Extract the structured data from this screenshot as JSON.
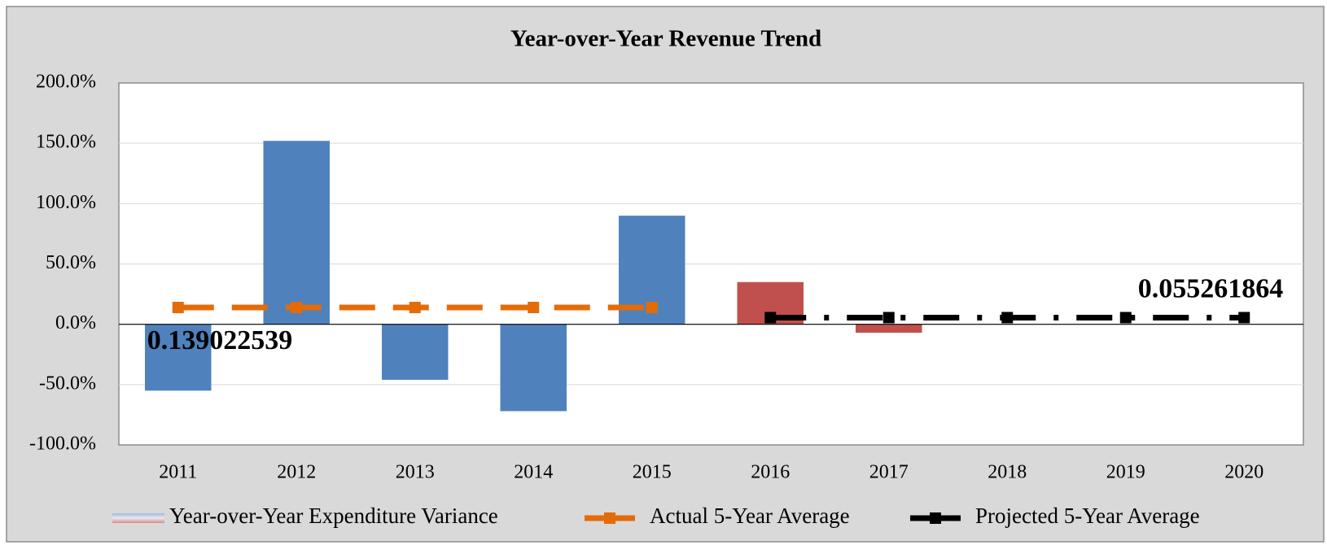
{
  "chart_data": {
    "type": "bar",
    "title": "Year-over-Year Revenue Trend",
    "categories": [
      "2011",
      "2012",
      "2013",
      "2014",
      "2015",
      "2016",
      "2017",
      "2018",
      "2019",
      "2020"
    ],
    "series": [
      {
        "name": "Year-over-Year Expenditure Variance",
        "type": "bar",
        "colors": [
          "#4f81bd",
          "#4f81bd",
          "#4f81bd",
          "#4f81bd",
          "#4f81bd",
          "#c0504d",
          "#c0504d",
          null,
          null,
          null
        ],
        "values": [
          -55,
          152,
          -46,
          -72,
          90,
          35,
          -7,
          null,
          null,
          null
        ]
      },
      {
        "name": "Actual 5-Year Average",
        "type": "line",
        "color": "#e36c09",
        "line_style": "dashed",
        "values": [
          13.9022539,
          13.9022539,
          13.9022539,
          13.9022539,
          13.9022539,
          null,
          null,
          null,
          null,
          null
        ],
        "value_labels": [
          "0.139022539",
          null,
          null,
          null,
          null,
          null,
          null,
          null,
          null,
          null
        ]
      },
      {
        "name": "Projected 5-Year Average",
        "type": "line",
        "color": "#000000",
        "line_style": "dashdot",
        "values": [
          null,
          null,
          null,
          null,
          null,
          5.5261864,
          5.5261864,
          5.5261864,
          5.5261864,
          5.5261864
        ],
        "value_labels": [
          null,
          null,
          null,
          null,
          null,
          null,
          null,
          null,
          null,
          "0.055261864"
        ]
      }
    ],
    "ylim": [
      -100,
      200
    ],
    "yticks": [
      {
        "value": -100,
        "label": "-100.0%"
      },
      {
        "value": -50,
        "label": "-50.0%"
      },
      {
        "value": 0,
        "label": "0.0%"
      },
      {
        "value": 50,
        "label": "50.0%"
      },
      {
        "value": 100,
        "label": "100.0%"
      },
      {
        "value": 150,
        "label": "150.0%"
      },
      {
        "value": 200,
        "label": "200.0%"
      }
    ],
    "grid": true,
    "legend": "bottom"
  }
}
